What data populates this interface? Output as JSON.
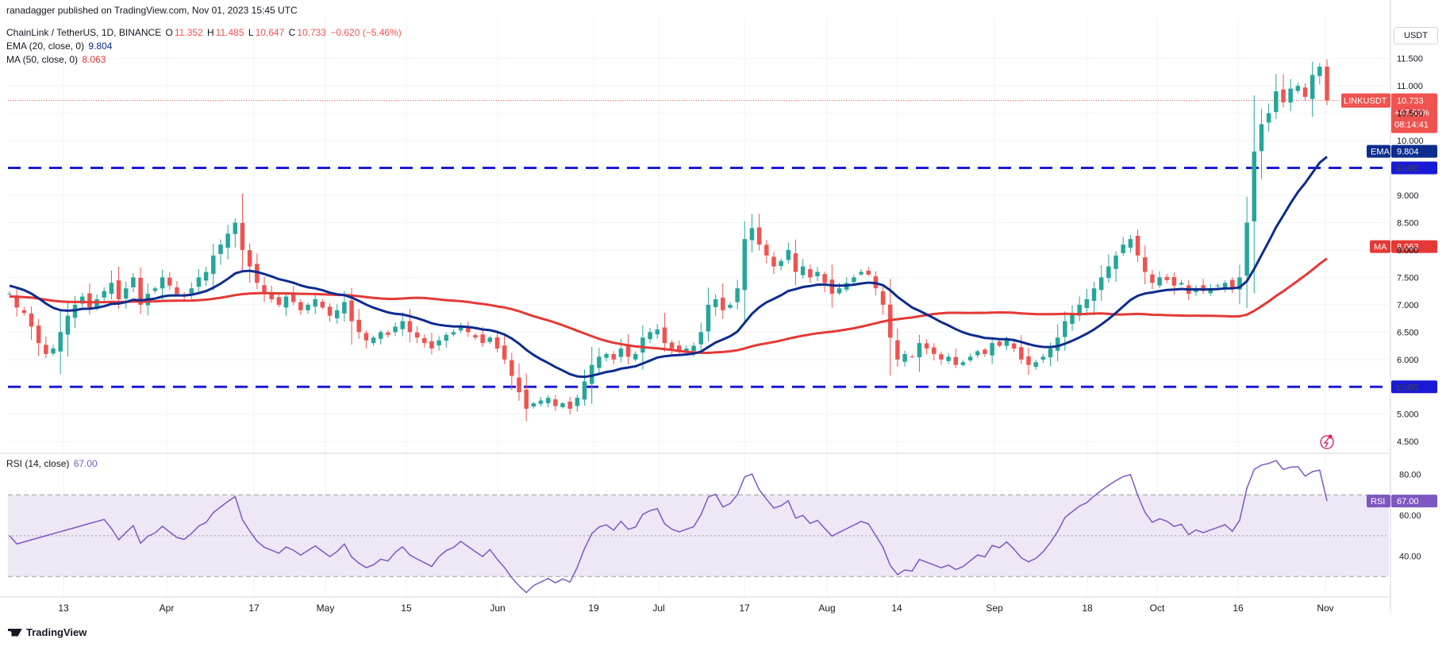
{
  "attribution": "ranadagger published on TradingView.com, Nov 01, 2023 15:45 UTC",
  "legend": {
    "symbol": "ChainLink / TetherUS, 1D, BINANCE",
    "o_label": "O",
    "o_val": "11.352",
    "h_label": "H",
    "h_val": "11.485",
    "l_label": "L",
    "l_val": "10.647",
    "c_label": "C",
    "c_val": "10.733",
    "change": "−0.620 (−5.46%)",
    "ema_label": "EMA (20, close, 0)",
    "ema_val": "9.804",
    "ma_label": "MA (50, close, 0)",
    "ma_val": "8.063",
    "rsi_label": "RSI (14, close)",
    "rsi_val": "67.00"
  },
  "currency": "USDT",
  "branding": "TradingView",
  "colors": {
    "up": "#26a69a",
    "down": "#ef5350",
    "ema": "#0d2c8e",
    "ma": "#e53935",
    "level": "#1a1ad6",
    "rsi": "#7e57c2",
    "rsi_band": "#ede7f6",
    "grid": "#f0f3fa",
    "text": "#131722"
  },
  "chart_data": [
    {
      "type": "candlestick",
      "title": "ChainLink / TetherUS, 1D, BINANCE",
      "ylim": [
        4.3,
        12.25
      ],
      "y_ticks": [
        4.5,
        5.0,
        5.5,
        6.0,
        6.5,
        7.0,
        7.5,
        8.0,
        8.5,
        9.0,
        9.5,
        10.0,
        10.5,
        11.0,
        11.5
      ],
      "x_ticks": [
        "13",
        "Apr",
        "17",
        "May",
        "15",
        "Jun",
        "19",
        "Jul",
        "17",
        "Aug",
        "14",
        "Sep",
        "18",
        "Oct",
        "16",
        "Nov"
      ],
      "close_path": [
        7.2,
        6.95,
        6.85,
        6.6,
        6.3,
        6.1,
        6.2,
        6.5,
        6.8,
        7.0,
        7.15,
        6.95,
        7.1,
        7.25,
        7.4,
        7.1,
        7.3,
        7.5,
        7.0,
        7.2,
        7.3,
        7.5,
        7.35,
        7.2,
        7.15,
        7.3,
        7.5,
        7.6,
        7.9,
        8.1,
        8.3,
        8.5,
        8.0,
        7.7,
        7.4,
        7.2,
        7.1,
        7.0,
        7.15,
        7.05,
        6.9,
        7.0,
        7.1,
        6.95,
        6.8,
        6.9,
        7.05,
        6.7,
        6.5,
        6.35,
        6.4,
        6.5,
        6.45,
        6.6,
        6.7,
        6.5,
        6.4,
        6.3,
        6.2,
        6.35,
        6.45,
        6.5,
        6.6,
        6.5,
        6.4,
        6.3,
        6.4,
        6.2,
        6.0,
        5.7,
        5.4,
        5.1,
        5.2,
        5.25,
        5.3,
        5.15,
        5.2,
        5.1,
        5.3,
        5.6,
        5.9,
        6.05,
        6.1,
        6.0,
        6.2,
        6.05,
        6.1,
        6.4,
        6.5,
        6.55,
        6.3,
        6.2,
        6.15,
        6.2,
        6.25,
        6.5,
        7.0,
        7.1,
        6.9,
        7.0,
        7.3,
        8.2,
        8.4,
        8.1,
        7.9,
        7.7,
        7.8,
        8.0,
        7.6,
        7.7,
        7.5,
        7.6,
        7.4,
        7.2,
        7.3,
        7.4,
        7.5,
        7.6,
        7.55,
        7.3,
        7.0,
        6.4,
        6.0,
        6.1,
        6.05,
        6.3,
        6.2,
        6.1,
        6.0,
        6.05,
        5.9,
        5.95,
        6.05,
        6.15,
        6.1,
        6.3,
        6.25,
        6.35,
        6.2,
        6.0,
        5.9,
        5.95,
        6.05,
        6.2,
        6.4,
        6.7,
        6.85,
        7.0,
        7.1,
        7.3,
        7.5,
        7.7,
        7.9,
        8.1,
        8.2,
        7.9,
        7.6,
        7.4,
        7.5,
        7.45,
        7.35,
        7.4,
        7.2,
        7.3,
        7.25,
        7.3,
        7.35,
        7.4,
        7.3,
        7.5,
        8.5,
        9.8,
        10.3,
        10.5,
        10.9,
        10.7,
        10.95,
        11.0,
        10.8,
        11.2,
        11.35,
        10.73
      ]
    },
    {
      "type": "line",
      "title": "RSI (14, close)",
      "ylim": [
        20,
        90
      ],
      "y_ticks": [
        40.0,
        60.0,
        80.0
      ],
      "bands": [
        30,
        50,
        70
      ],
      "last_value": 67.0
    }
  ],
  "price_levels": [
    {
      "label": "9.500",
      "value": 9.5
    },
    {
      "label": "5.500",
      "value": 5.5
    }
  ],
  "price_badges": {
    "symbol": "LINKUSDT",
    "price": "10.733",
    "change": "+47.53%",
    "countdown": "08:14:41",
    "ema": "EMA",
    "ema_val": "9.804",
    "ma": "MA",
    "ma_val": "8.063",
    "rsi": "RSI",
    "rsi_val": "67.00"
  }
}
